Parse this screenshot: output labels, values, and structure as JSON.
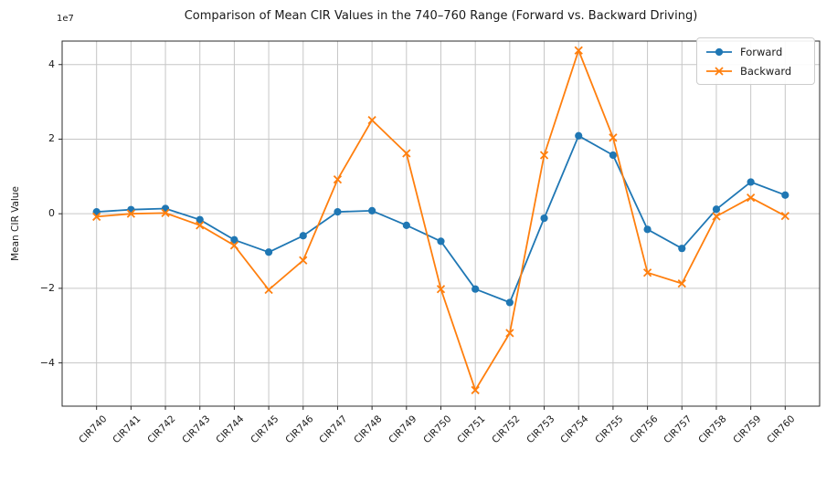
{
  "chart_data": {
    "type": "line",
    "title": "Comparison of Mean CIR Values in the 740–760 Range (Forward vs. Backward Driving)",
    "xlabel": "",
    "ylabel": "Mean CIR Value",
    "y_offset_text": "1e7",
    "values_unit": "1e7",
    "grid": true,
    "legend_position": "upper right",
    "ylim": [
      -5.16,
      4.63
    ],
    "yticks": [
      4,
      2,
      0,
      -2,
      -4
    ],
    "categories": [
      "CIR740",
      "CIR741",
      "CIR742",
      "CIR743",
      "CIR744",
      "CIR745",
      "CIR746",
      "CIR747",
      "CIR748",
      "CIR749",
      "CIR750",
      "CIR751",
      "CIR752",
      "CIR753",
      "CIR754",
      "CIR755",
      "CIR756",
      "CIR757",
      "CIR758",
      "CIR759",
      "CIR760"
    ],
    "series": [
      {
        "name": "Forward",
        "color": "#1f77b4",
        "marker": "circle",
        "values": [
          0.05,
          0.11,
          0.14,
          -0.16,
          -0.7,
          -1.03,
          -0.59,
          0.05,
          0.08,
          -0.31,
          -0.74,
          -2.02,
          -2.38,
          -0.12,
          2.09,
          1.57,
          -0.42,
          -0.93,
          0.12,
          0.85,
          0.5
        ]
      },
      {
        "name": "Backward",
        "color": "#ff7f0e",
        "marker": "x",
        "values": [
          -0.08,
          0.0,
          0.02,
          -0.31,
          -0.85,
          -2.04,
          -1.25,
          0.92,
          2.51,
          1.62,
          -2.02,
          -4.73,
          -3.2,
          1.57,
          4.38,
          2.04,
          -1.58,
          -1.87,
          -0.07,
          0.43,
          -0.06
        ]
      }
    ],
    "style": {
      "grid_color": "#c6c6c6",
      "spine_color": "#2b2b2b",
      "background": "#ffffff"
    }
  }
}
